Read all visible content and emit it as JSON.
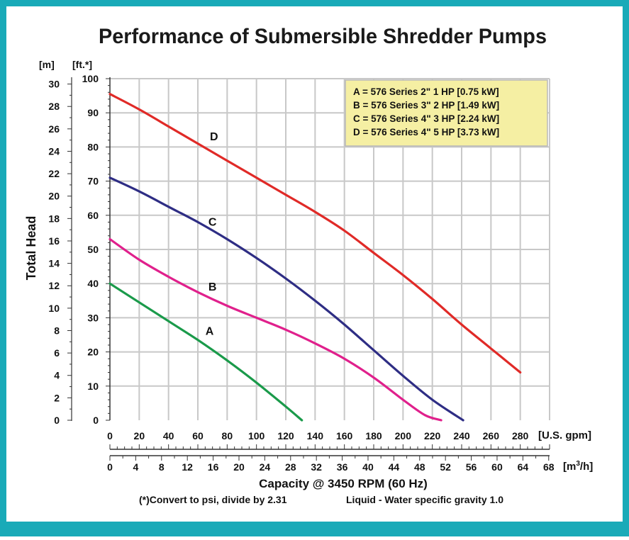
{
  "frame_color": "#19aab8",
  "chart_data": {
    "type": "line",
    "title": "Performance of Submersible Shredder Pumps",
    "ylabel": "Total Head",
    "y_unit_left": "[m]",
    "y_unit_right": "[ft.*]",
    "x_unit_primary": "[U.S. gpm]",
    "x_unit_secondary_prefix": "[m",
    "x_unit_secondary_sup": "3",
    "x_unit_secondary_suffix": "/h]",
    "xlabel": "Capacity @ 3450 RPM (60 Hz)",
    "footnote_left": "(*)Convert to psi, divide by 2.31",
    "footnote_right": "Liquid - Water specific gravity 1.0",
    "xlim": [
      0,
      300
    ],
    "ylim": [
      0,
      100
    ],
    "x_ticks": [
      "0",
      "20",
      "40",
      "60",
      "80",
      "100",
      "120",
      "140",
      "160",
      "180",
      "200",
      "220",
      "240",
      "260",
      "280"
    ],
    "x_ticks_m3h": [
      "0",
      "4",
      "8",
      "12",
      "16",
      "20",
      "24",
      "28",
      "32",
      "36",
      "40",
      "44",
      "48",
      "52",
      "56",
      "60",
      "64",
      "68"
    ],
    "y_ticks_ft": [
      "0",
      "10",
      "20",
      "30",
      "40",
      "50",
      "60",
      "70",
      "80",
      "90",
      "100"
    ],
    "y_ticks_m": [
      "0",
      "2",
      "4",
      "6",
      "8",
      "10",
      "12",
      "14",
      "16",
      "18",
      "20",
      "22",
      "24",
      "26",
      "28",
      "30"
    ],
    "grid": true,
    "legend_position": "top-right",
    "legend": [
      "A = 576 Series 2\" 1 HP [0.75 kW]",
      "B = 576 Series 3\" 2 HP [1.49 kW]",
      "C = 576 Series 4\" 3 HP [2.24 kW]",
      "D = 576 Series 4\" 5 HP [3.73 kW]"
    ],
    "series": [
      {
        "name": "A",
        "color": "#1a9a4a",
        "label_at": [
          68,
          25
        ],
        "x": [
          0,
          20,
          40,
          60,
          80,
          100,
          120,
          131
        ],
        "y": [
          40,
          34.5,
          29,
          23.5,
          17.5,
          11,
          4,
          0
        ]
      },
      {
        "name": "B",
        "color": "#e0208c",
        "label_at": [
          70,
          38
        ],
        "x": [
          0,
          20,
          40,
          60,
          80,
          100,
          120,
          140,
          160,
          180,
          200,
          215,
          226
        ],
        "y": [
          53,
          47,
          42,
          37.5,
          33.5,
          30,
          26.5,
          22.5,
          18,
          12.5,
          6,
          1.5,
          0
        ]
      },
      {
        "name": "C",
        "color": "#2e2d84",
        "label_at": [
          70,
          57
        ],
        "x": [
          0,
          20,
          40,
          60,
          80,
          100,
          120,
          140,
          160,
          180,
          200,
          220,
          241
        ],
        "y": [
          71,
          67,
          62.5,
          58,
          53,
          47.5,
          41.5,
          35,
          28,
          20.5,
          13,
          6,
          0
        ]
      },
      {
        "name": "D",
        "color": "#e02a27",
        "label_at": [
          71,
          82
        ],
        "x": [
          0,
          20,
          40,
          60,
          80,
          100,
          120,
          140,
          160,
          180,
          200,
          220,
          240,
          260,
          280
        ],
        "y": [
          95.5,
          91,
          86,
          81,
          76,
          71,
          66,
          61,
          55.5,
          49,
          42.5,
          35.5,
          28,
          21,
          14
        ]
      }
    ]
  }
}
